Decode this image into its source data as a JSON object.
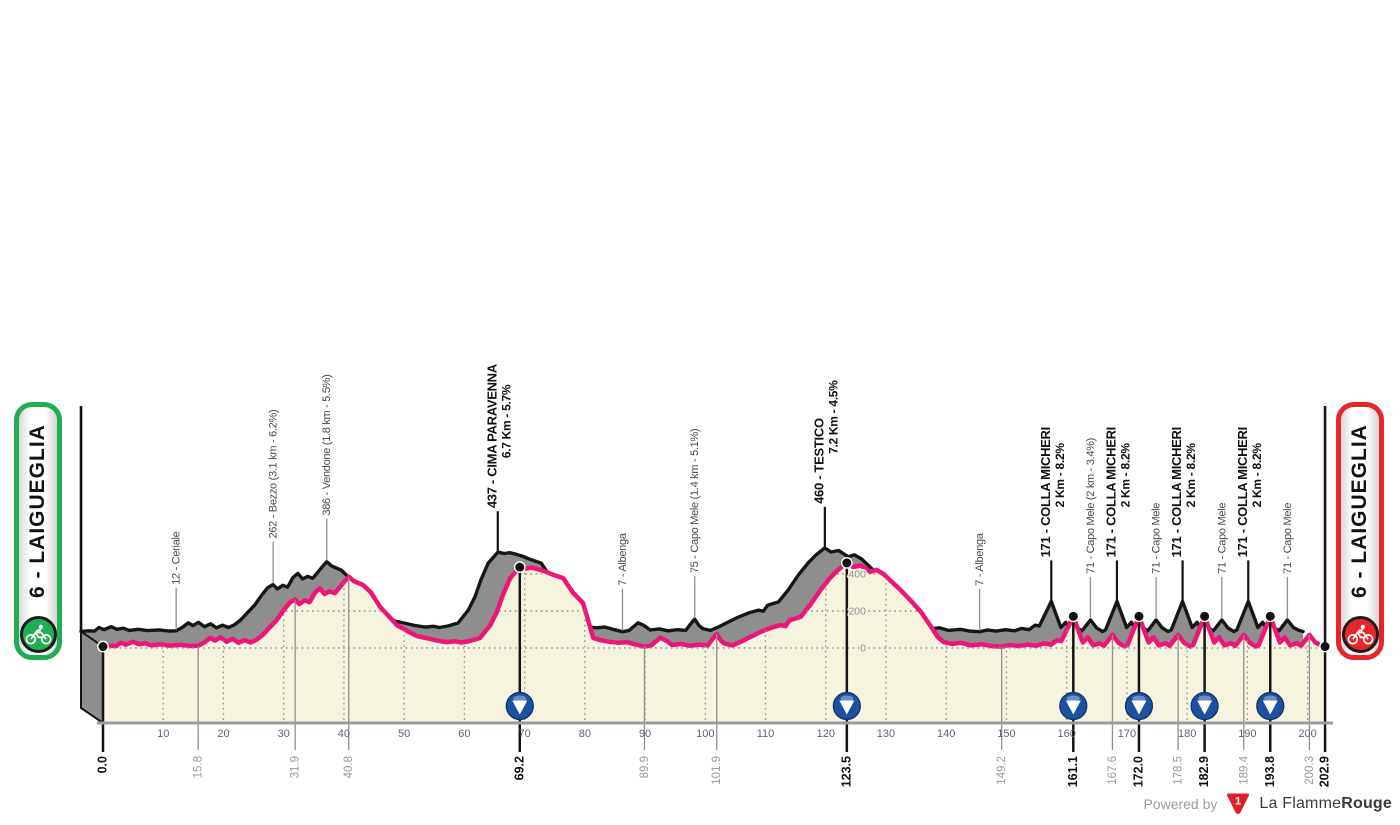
{
  "stage": {
    "start_badge": {
      "label": "6 - LAIGUEGLIA",
      "color": "#1fae52"
    },
    "finish_badge": {
      "label": "6 - LAIGUEGLIA",
      "color": "#e8252b"
    }
  },
  "footer": {
    "powered_by": "Powered by",
    "logo_number": "1",
    "brand_regular": "La Flamme",
    "brand_bold": "Rouge"
  },
  "chart_data": {
    "type": "area",
    "title": "",
    "xlabel": "",
    "ylabel": "",
    "xlim": [
      0,
      202.9
    ],
    "ylim": [
      0,
      460
    ],
    "grid": true,
    "x_ticks": [
      10,
      20,
      30,
      40,
      50,
      60,
      70,
      80,
      90,
      100,
      110,
      120,
      130,
      140,
      150,
      160,
      170,
      180,
      190,
      200
    ],
    "y_ticks": [
      0,
      200,
      400
    ],
    "y_tick_labels": [
      "0",
      "200",
      "400"
    ],
    "colors": {
      "line": "#ee1478",
      "fill": "#f6f3df",
      "shadow_fill": "#8e8e8e",
      "shadow_line": "#161616",
      "marker_blue": "#1d509f",
      "grid": "#8f8f8f",
      "axis": "#9b9b9b",
      "minor_label": "#4a4a4a",
      "minor_km": "#999999",
      "bold": "#111111"
    },
    "profile": [
      [
        0,
        8
      ],
      [
        1.2,
        12
      ],
      [
        2.2,
        10
      ],
      [
        3,
        30
      ],
      [
        3.8,
        18
      ],
      [
        5,
        34
      ],
      [
        6,
        20
      ],
      [
        7,
        26
      ],
      [
        8,
        14
      ],
      [
        9.5,
        20
      ],
      [
        11,
        13
      ],
      [
        13,
        17
      ],
      [
        14.5,
        11
      ],
      [
        15.8,
        12
      ],
      [
        16.8,
        30
      ],
      [
        17.8,
        55
      ],
      [
        18.6,
        40
      ],
      [
        19.5,
        58
      ],
      [
        20.5,
        34
      ],
      [
        21.5,
        50
      ],
      [
        22.5,
        28
      ],
      [
        23.5,
        42
      ],
      [
        24.5,
        30
      ],
      [
        25.5,
        45
      ],
      [
        26.5,
        70
      ],
      [
        27.5,
        105
      ],
      [
        28.8,
        150
      ],
      [
        30,
        205
      ],
      [
        31,
        245
      ],
      [
        31.9,
        262
      ],
      [
        32.6,
        238
      ],
      [
        33.5,
        258
      ],
      [
        34.3,
        248
      ],
      [
        35.2,
        300
      ],
      [
        36,
        322
      ],
      [
        36.8,
        292
      ],
      [
        37.6,
        306
      ],
      [
        38.5,
        296
      ],
      [
        39.5,
        336
      ],
      [
        40.8,
        386
      ],
      [
        41.6,
        362
      ],
      [
        43.2,
        340
      ],
      [
        44.5,
        300
      ],
      [
        46,
        222
      ],
      [
        47.5,
        170
      ],
      [
        48.8,
        124
      ],
      [
        50.5,
        92
      ],
      [
        52.1,
        65
      ],
      [
        54.3,
        49
      ],
      [
        55.5,
        40
      ],
      [
        57.1,
        32
      ],
      [
        58.5,
        36
      ],
      [
        59.5,
        30
      ],
      [
        60.9,
        38
      ],
      [
        62.6,
        54
      ],
      [
        64.3,
        124
      ],
      [
        65.4,
        195
      ],
      [
        66.4,
        287
      ],
      [
        67.6,
        378
      ],
      [
        69.2,
        437
      ],
      [
        70.3,
        430
      ],
      [
        71.2,
        434
      ],
      [
        72.2,
        426
      ],
      [
        73.4,
        414
      ],
      [
        74.8,
        395
      ],
      [
        76.4,
        378
      ],
      [
        78,
        300
      ],
      [
        79.7,
        243
      ],
      [
        81.4,
        54
      ],
      [
        82.5,
        43
      ],
      [
        84,
        34
      ],
      [
        85.5,
        28
      ],
      [
        87,
        32
      ],
      [
        88.3,
        20
      ],
      [
        89.9,
        7
      ],
      [
        91,
        14
      ],
      [
        92.5,
        55
      ],
      [
        93.5,
        40
      ],
      [
        94.5,
        16
      ],
      [
        96,
        22
      ],
      [
        97.5,
        12
      ],
      [
        99,
        18
      ],
      [
        100.4,
        14
      ],
      [
        101,
        40
      ],
      [
        101.9,
        75
      ],
      [
        102.6,
        40
      ],
      [
        103.2,
        24
      ],
      [
        104.5,
        14
      ],
      [
        106,
        35
      ],
      [
        107.5,
        60
      ],
      [
        109.2,
        87
      ],
      [
        111,
        110
      ],
      [
        112.5,
        124
      ],
      [
        113.3,
        118
      ],
      [
        114,
        150
      ],
      [
        115.8,
        168
      ],
      [
        117.4,
        232
      ],
      [
        119.1,
        313
      ],
      [
        120.7,
        378
      ],
      [
        122,
        421
      ],
      [
        123.5,
        460
      ],
      [
        124.5,
        438
      ],
      [
        125.8,
        446
      ],
      [
        127.4,
        412
      ],
      [
        128.4,
        422
      ],
      [
        129.6,
        400
      ],
      [
        131,
        357
      ],
      [
        132.4,
        314
      ],
      [
        134,
        260
      ],
      [
        135.8,
        195
      ],
      [
        137.5,
        114
      ],
      [
        138.6,
        59
      ],
      [
        139.6,
        32
      ],
      [
        141,
        22
      ],
      [
        142.5,
        28
      ],
      [
        144,
        14
      ],
      [
        146,
        20
      ],
      [
        147.5,
        10
      ],
      [
        149.2,
        7
      ],
      [
        150.5,
        16
      ],
      [
        152,
        10
      ],
      [
        153.5,
        18
      ],
      [
        155,
        12
      ],
      [
        156.2,
        25
      ],
      [
        157.4,
        18
      ],
      [
        158.4,
        42
      ],
      [
        159.1,
        38
      ],
      [
        161.1,
        171
      ],
      [
        161.9,
        100
      ],
      [
        162.7,
        30
      ],
      [
        163.5,
        58
      ],
      [
        164.4,
        14
      ],
      [
        165.5,
        26
      ],
      [
        166.2,
        12
      ],
      [
        167.6,
        71
      ],
      [
        168.6,
        28
      ],
      [
        169.6,
        8
      ],
      [
        170.1,
        16
      ],
      [
        172,
        171
      ],
      [
        172.8,
        100
      ],
      [
        173.6,
        30
      ],
      [
        174.4,
        58
      ],
      [
        175.3,
        14
      ],
      [
        176.4,
        26
      ],
      [
        177.1,
        12
      ],
      [
        178.5,
        71
      ],
      [
        179.5,
        28
      ],
      [
        180.5,
        8
      ],
      [
        181,
        16
      ],
      [
        182.9,
        171
      ],
      [
        183.7,
        100
      ],
      [
        184.5,
        30
      ],
      [
        185.3,
        58
      ],
      [
        186.2,
        14
      ],
      [
        187.3,
        26
      ],
      [
        188,
        12
      ],
      [
        189.4,
        71
      ],
      [
        190.4,
        28
      ],
      [
        191.4,
        8
      ],
      [
        191.9,
        16
      ],
      [
        193.8,
        171
      ],
      [
        194.6,
        100
      ],
      [
        195.4,
        30
      ],
      [
        196.2,
        58
      ],
      [
        197.1,
        14
      ],
      [
        198.2,
        26
      ],
      [
        198.9,
        12
      ],
      [
        200.3,
        71
      ],
      [
        201.3,
        30
      ],
      [
        202.2,
        14
      ],
      [
        202.9,
        8
      ]
    ],
    "waypoints": [
      {
        "km": 0.0,
        "elev": 8,
        "name": "",
        "sub": "",
        "km_label": "0.0",
        "bold": true,
        "badge": false,
        "dot": true
      },
      {
        "km": 15.8,
        "elev": 12,
        "name": "12 - Ceriale",
        "sub": "",
        "km_label": "15.8",
        "bold": false,
        "badge": false,
        "dot": false
      },
      {
        "km": 31.9,
        "elev": 262,
        "name": "262 - Bezzo (3.1 km - 6.2%)",
        "sub": "",
        "km_label": "31.9",
        "bold": false,
        "badge": false,
        "dot": false
      },
      {
        "km": 40.8,
        "elev": 386,
        "name": "386 - Vendone (1.8 km - 5.5%)",
        "sub": "",
        "km_label": "40.8",
        "bold": false,
        "badge": false,
        "dot": false
      },
      {
        "km": 69.2,
        "elev": 437,
        "name": "437 - CIMA PARAVENNA",
        "sub": "6.7 Km - 5.7%",
        "km_label": "69.2",
        "bold": true,
        "badge": true,
        "dot": true
      },
      {
        "km": 89.9,
        "elev": 7,
        "name": "7 - Albenga",
        "sub": "",
        "km_label": "89.9",
        "bold": false,
        "badge": false,
        "dot": false
      },
      {
        "km": 101.9,
        "elev": 75,
        "name": "75 - Capo Mele (1.4 km - 5.1%)",
        "sub": "",
        "km_label": "101.9",
        "bold": false,
        "badge": false,
        "dot": false
      },
      {
        "km": 123.5,
        "elev": 460,
        "name": "460 - TESTICO",
        "sub": "7.2 Km - 4.5%",
        "km_label": "123.5",
        "bold": true,
        "badge": true,
        "dot": true
      },
      {
        "km": 149.2,
        "elev": 7,
        "name": "7 - Albenga",
        "sub": "",
        "km_label": "149.2",
        "bold": false,
        "badge": false,
        "dot": false
      },
      {
        "km": 161.1,
        "elev": 171,
        "name": "171 - COLLA MICHERI",
        "sub": "2 Km - 8.2%",
        "km_label": "161.1",
        "bold": true,
        "badge": true,
        "dot": true
      },
      {
        "km": 167.6,
        "elev": 71,
        "name": "71 - Capo Mele (2 km - 3.4%)",
        "sub": "",
        "km_label": "167.6",
        "bold": false,
        "badge": false,
        "dot": false
      },
      {
        "km": 172.0,
        "elev": 171,
        "name": "171 - COLLA MICHERI",
        "sub": "2 Km - 8.2%",
        "km_label": "172.0",
        "bold": true,
        "badge": true,
        "dot": true
      },
      {
        "km": 178.5,
        "elev": 71,
        "name": "71 - Capo Mele",
        "sub": "",
        "km_label": "178.5",
        "bold": false,
        "badge": false,
        "dot": false
      },
      {
        "km": 182.9,
        "elev": 171,
        "name": "171 - COLLA MICHERI",
        "sub": "2 Km - 8.2%",
        "km_label": "182.9",
        "bold": true,
        "badge": true,
        "dot": true
      },
      {
        "km": 189.4,
        "elev": 71,
        "name": "71 - Capo Mele",
        "sub": "",
        "km_label": "189.4",
        "bold": false,
        "badge": false,
        "dot": false
      },
      {
        "km": 193.8,
        "elev": 171,
        "name": "171 - COLLA MICHERI",
        "sub": "2 Km - 8.2%",
        "km_label": "193.8",
        "bold": true,
        "badge": true,
        "dot": true
      },
      {
        "km": 200.3,
        "elev": 71,
        "name": "71 - Capo Mele",
        "sub": "",
        "km_label": "200.3",
        "bold": false,
        "badge": false,
        "dot": false
      },
      {
        "km": 202.9,
        "elev": 8,
        "name": "",
        "sub": "",
        "km_label": "202.9",
        "bold": true,
        "badge": false,
        "dot": true
      }
    ]
  }
}
